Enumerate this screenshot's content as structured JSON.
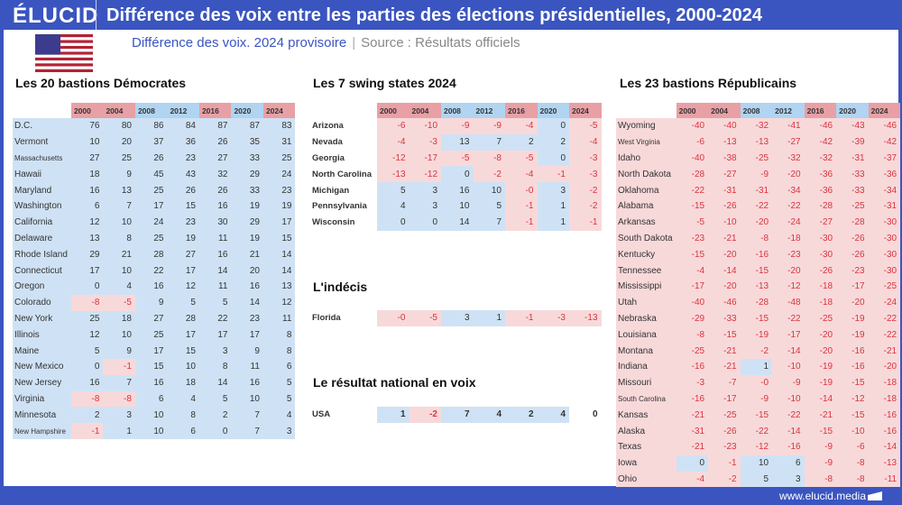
{
  "header": {
    "logo": "ÉLUCID",
    "title": "Différence des voix entre les parties des élections présidentielles, 2000-2024",
    "subtitle": "Différence des voix. 2024 provisoire",
    "source": "Source : Résultats officiels",
    "footer": "www.elucid.media"
  },
  "colors": {
    "frame": "#3a55c0",
    "dem_cell": "#cfe2f5",
    "rep_cell": "#f8d9da",
    "dem_header": "#b0d4f1",
    "rep_header": "#e8a0a5",
    "negative_text": "#d9343e"
  },
  "chart_data": {
    "type": "table",
    "years": [
      "2000",
      "2004",
      "2008",
      "2012",
      "2016",
      "2020",
      "2024"
    ],
    "year_winner": [
      "rep",
      "rep",
      "dem",
      "dem",
      "rep",
      "dem",
      "rep"
    ],
    "tables": [
      {
        "title": "Les 20 bastions Démocrates",
        "rows": [
          [
            "D.C.",
            "76",
            "80",
            "86",
            "84",
            "87",
            "87",
            "83"
          ],
          [
            "Vermont",
            "10",
            "20",
            "37",
            "36",
            "26",
            "35",
            "31"
          ],
          [
            "Massachusetts",
            "27",
            "25",
            "26",
            "23",
            "27",
            "33",
            "25"
          ],
          [
            "Hawaii",
            "18",
            "9",
            "45",
            "43",
            "32",
            "29",
            "24"
          ],
          [
            "Maryland",
            "16",
            "13",
            "25",
            "26",
            "26",
            "33",
            "23"
          ],
          [
            "Washington",
            "6",
            "7",
            "17",
            "15",
            "16",
            "19",
            "19"
          ],
          [
            "California",
            "12",
            "10",
            "24",
            "23",
            "30",
            "29",
            "17"
          ],
          [
            "Delaware",
            "13",
            "8",
            "25",
            "19",
            "11",
            "19",
            "15"
          ],
          [
            "Rhode Island",
            "29",
            "21",
            "28",
            "27",
            "16",
            "21",
            "14"
          ],
          [
            "Connecticut",
            "17",
            "10",
            "22",
            "17",
            "14",
            "20",
            "14"
          ],
          [
            "Oregon",
            "0",
            "4",
            "16",
            "12",
            "11",
            "16",
            "13"
          ],
          [
            "Colorado",
            "-8",
            "-5",
            "9",
            "5",
            "5",
            "14",
            "12"
          ],
          [
            "New York",
            "25",
            "18",
            "27",
            "28",
            "22",
            "23",
            "11"
          ],
          [
            "Illinois",
            "12",
            "10",
            "25",
            "17",
            "17",
            "17",
            "8"
          ],
          [
            "Maine",
            "5",
            "9",
            "17",
            "15",
            "3",
            "9",
            "8"
          ],
          [
            "New Mexico",
            "0",
            "-1",
            "15",
            "10",
            "8",
            "11",
            "6"
          ],
          [
            "New Jersey",
            "16",
            "7",
            "16",
            "18",
            "14",
            "16",
            "5"
          ],
          [
            "Virginia",
            "-8",
            "-8",
            "6",
            "4",
            "5",
            "10",
            "5"
          ],
          [
            "Minnesota",
            "2",
            "3",
            "10",
            "8",
            "2",
            "7",
            "4"
          ],
          [
            "New Hampshire",
            "-1",
            "1",
            "10",
            "6",
            "0",
            "7",
            "3"
          ]
        ]
      },
      {
        "title": "Les 7 swing states 2024",
        "rows": [
          [
            "Arizona",
            "-6",
            "-10",
            "-9",
            "-9",
            "-4",
            "0",
            "-5"
          ],
          [
            "Nevada",
            "-4",
            "-3",
            "13",
            "7",
            "2",
            "2",
            "-4"
          ],
          [
            "Georgia",
            "-12",
            "-17",
            "-5",
            "-8",
            "-5",
            "0",
            "-3"
          ],
          [
            "North Carolina",
            "-13",
            "-12",
            "0",
            "-2",
            "-4",
            "-1",
            "-3"
          ],
          [
            "Michigan",
            "5",
            "3",
            "16",
            "10",
            "-0",
            "3",
            "-2"
          ],
          [
            "Pennsylvania",
            "4",
            "3",
            "10",
            "5",
            "-1",
            "1",
            "-2"
          ],
          [
            "Wisconsin",
            "0",
            "0",
            "14",
            "7",
            "-1",
            "1",
            "-1"
          ]
        ]
      },
      {
        "title": "L'indécis",
        "rows": [
          [
            "Florida",
            "-0",
            "-5",
            "3",
            "1",
            "-1",
            "-3",
            "-13"
          ]
        ]
      },
      {
        "title": "Le résultat national en voix",
        "rows": [
          [
            "USA",
            "1",
            "-2",
            "7",
            "4",
            "2",
            "4",
            "0"
          ]
        ]
      },
      {
        "title": "Les 23 bastions Républicains",
        "rows": [
          [
            "Wyoming",
            "-40",
            "-40",
            "-32",
            "-41",
            "-46",
            "-43",
            "-46"
          ],
          [
            "West Virginia",
            "-6",
            "-13",
            "-13",
            "-27",
            "-42",
            "-39",
            "-42"
          ],
          [
            "Idaho",
            "-40",
            "-38",
            "-25",
            "-32",
            "-32",
            "-31",
            "-37"
          ],
          [
            "North Dakota",
            "-28",
            "-27",
            "-9",
            "-20",
            "-36",
            "-33",
            "-36"
          ],
          [
            "Oklahoma",
            "-22",
            "-31",
            "-31",
            "-34",
            "-36",
            "-33",
            "-34"
          ],
          [
            "Alabama",
            "-15",
            "-26",
            "-22",
            "-22",
            "-28",
            "-25",
            "-31"
          ],
          [
            "Arkansas",
            "-5",
            "-10",
            "-20",
            "-24",
            "-27",
            "-28",
            "-30"
          ],
          [
            "South Dakota",
            "-23",
            "-21",
            "-8",
            "-18",
            "-30",
            "-26",
            "-30"
          ],
          [
            "Kentucky",
            "-15",
            "-20",
            "-16",
            "-23",
            "-30",
            "-26",
            "-30"
          ],
          [
            "Tennessee",
            "-4",
            "-14",
            "-15",
            "-20",
            "-26",
            "-23",
            "-30"
          ],
          [
            "Mississippi",
            "-17",
            "-20",
            "-13",
            "-12",
            "-18",
            "-17",
            "-25"
          ],
          [
            "Utah",
            "-40",
            "-46",
            "-28",
            "-48",
            "-18",
            "-20",
            "-24"
          ],
          [
            "Nebraska",
            "-29",
            "-33",
            "-15",
            "-22",
            "-25",
            "-19",
            "-22"
          ],
          [
            "Louisiana",
            "-8",
            "-15",
            "-19",
            "-17",
            "-20",
            "-19",
            "-22"
          ],
          [
            "Montana",
            "-25",
            "-21",
            "-2",
            "-14",
            "-20",
            "-16",
            "-21"
          ],
          [
            "Indiana",
            "-16",
            "-21",
            "1",
            "-10",
            "-19",
            "-16",
            "-20"
          ],
          [
            "Missouri",
            "-3",
            "-7",
            "-0",
            "-9",
            "-19",
            "-15",
            "-18"
          ],
          [
            "South Carolina",
            "-16",
            "-17",
            "-9",
            "-10",
            "-14",
            "-12",
            "-18"
          ],
          [
            "Kansas",
            "-21",
            "-25",
            "-15",
            "-22",
            "-21",
            "-15",
            "-16"
          ],
          [
            "Alaska",
            "-31",
            "-26",
            "-22",
            "-14",
            "-15",
            "-10",
            "-16"
          ],
          [
            "Texas",
            "-21",
            "-23",
            "-12",
            "-16",
            "-9",
            "-6",
            "-14"
          ],
          [
            "Iowa",
            "0",
            "-1",
            "10",
            "6",
            "-9",
            "-8",
            "-13"
          ],
          [
            "Ohio",
            "-4",
            "-2",
            "5",
            "3",
            "-8",
            "-8",
            "-11"
          ]
        ]
      }
    ]
  }
}
